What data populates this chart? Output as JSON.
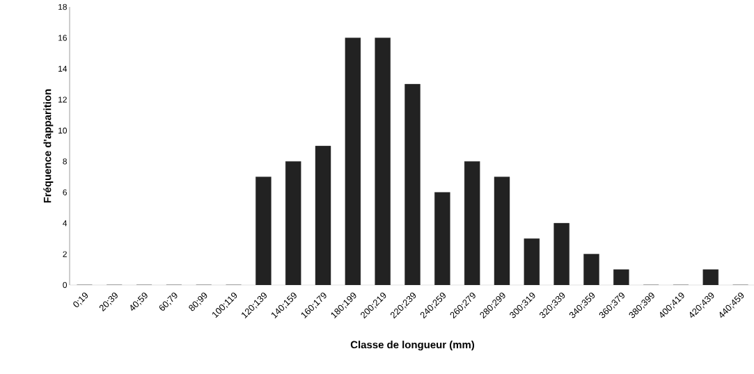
{
  "chart_data": {
    "type": "bar",
    "xlabel": "Classe de longueur (mm)",
    "ylabel": "Fréquence d'apparition",
    "categories": [
      "0;19",
      "20;39",
      "40;59",
      "60;79",
      "80;99",
      "100;119",
      "120;139",
      "140;159",
      "160;179",
      "180;199",
      "200;219",
      "220;239",
      "240;259",
      "260;279",
      "280;299",
      "300;319",
      "320;339",
      "340;359",
      "360;379",
      "380;399",
      "400;419",
      "420;439",
      "440;459"
    ],
    "values": [
      0,
      0,
      0,
      0,
      0,
      0,
      7,
      8,
      9,
      16,
      16,
      13,
      6,
      8,
      7,
      3,
      4,
      2,
      1,
      0,
      0,
      1,
      0
    ],
    "color": "#222222",
    "ylim": [
      0,
      18
    ],
    "yticks": [
      0,
      2,
      4,
      6,
      8,
      10,
      12,
      14,
      16,
      18
    ],
    "grid": false
  }
}
